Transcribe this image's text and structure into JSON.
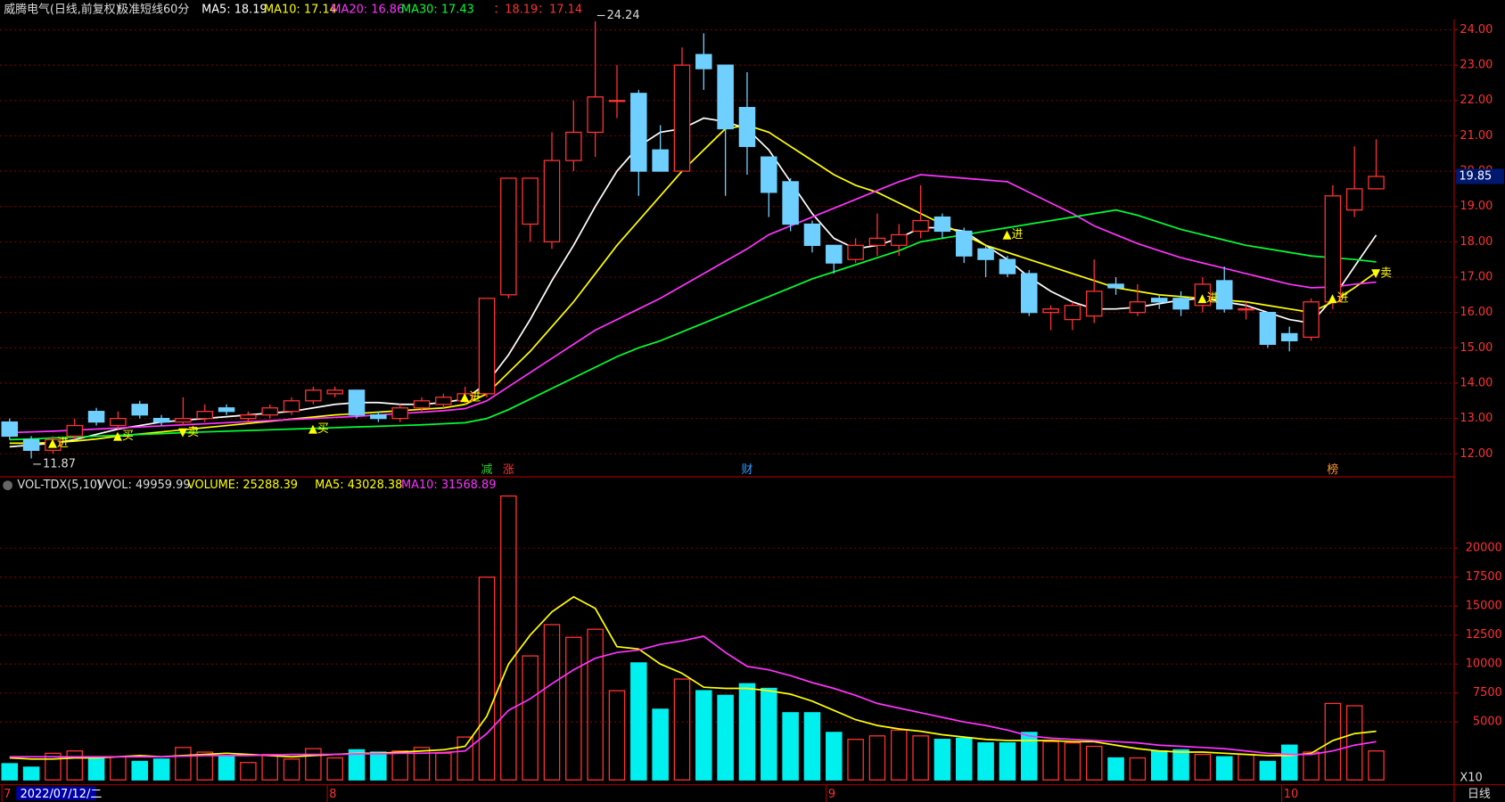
{
  "title": "威腾电气(日线,前复权)",
  "indicator": "极准短线60分",
  "signal_text": "：18.19：17.14",
  "footer": {
    "date": "2022/07/12/二",
    "scale": "X10",
    "period": "日线"
  },
  "chart_data": [
    {
      "type": "candlestick",
      "up_color": "#ff3232",
      "down_color": "#6fd0ff",
      "grid": true,
      "ylim": [
        11.35,
        24.3
      ],
      "yticks": [
        {
          "value": 12,
          "label": "12.00"
        },
        {
          "value": 13,
          "label": "13.00"
        },
        {
          "value": 14,
          "label": "14.00"
        },
        {
          "value": 15,
          "label": "15.00"
        },
        {
          "value": 16,
          "label": "16.00"
        },
        {
          "value": 17,
          "label": "17.00"
        },
        {
          "value": 18,
          "label": "18.00"
        },
        {
          "value": 19,
          "label": "19.00"
        },
        {
          "value": 20,
          "label": "20.00"
        },
        {
          "value": 21,
          "label": "21.00"
        },
        {
          "value": 22,
          "label": "22.00"
        },
        {
          "value": 23,
          "label": "23.00"
        },
        {
          "value": 24,
          "label": "24.00"
        }
      ],
      "open": [
        12.9,
        12.4,
        12.1,
        12.5,
        13.2,
        12.8,
        13.4,
        13.0,
        12.9,
        13.0,
        13.3,
        13.0,
        13.1,
        13.2,
        13.5,
        13.7,
        13.8,
        13.1,
        13.0,
        13.3,
        13.4,
        13.5,
        13.7,
        16.5,
        18.5,
        18.0,
        20.3,
        21.1,
        22.0,
        22.2,
        20.6,
        20.0,
        23.3,
        23.0,
        21.8,
        20.4,
        19.7,
        18.5,
        17.9,
        17.5,
        17.9,
        17.9,
        18.3,
        18.7,
        18.3,
        17.8,
        17.5,
        17.1,
        16.0,
        15.8,
        15.9,
        16.8,
        16.0,
        16.4,
        16.4,
        16.2,
        16.9,
        16.1,
        16.0,
        15.4,
        15.3,
        16.3,
        18.9,
        19.5
      ],
      "high": [
        13.0,
        12.5,
        12.5,
        13.0,
        13.3,
        13.2,
        13.5,
        13.1,
        13.6,
        13.4,
        13.4,
        13.2,
        13.4,
        13.6,
        13.9,
        13.9,
        13.8,
        13.2,
        13.4,
        13.6,
        13.7,
        13.9,
        16.4,
        19.8,
        19.8,
        21.1,
        22.0,
        24.24,
        23.0,
        22.3,
        21.3,
        23.5,
        23.9,
        23.0,
        22.8,
        20.4,
        19.8,
        18.6,
        17.9,
        18.1,
        18.8,
        18.5,
        19.6,
        18.8,
        18.4,
        17.9,
        17.6,
        17.2,
        16.2,
        16.3,
        17.5,
        17.0,
        16.8,
        16.5,
        16.6,
        17.0,
        17.3,
        16.3,
        16.0,
        15.6,
        16.4,
        19.6,
        20.7,
        20.9
      ],
      "low": [
        12.4,
        11.87,
        12.0,
        12.4,
        12.8,
        12.7,
        13.0,
        12.8,
        12.8,
        12.9,
        13.1,
        12.9,
        13.0,
        13.1,
        13.4,
        13.6,
        13.0,
        12.9,
        12.9,
        13.2,
        13.3,
        13.4,
        13.6,
        16.4,
        18.0,
        17.8,
        20.0,
        20.4,
        21.5,
        19.3,
        20.0,
        20.0,
        22.3,
        19.3,
        19.9,
        18.7,
        18.3,
        17.7,
        17.1,
        17.4,
        17.6,
        17.6,
        18.1,
        18.1,
        17.4,
        17.0,
        17.0,
        15.9,
        15.5,
        15.5,
        15.7,
        16.5,
        15.9,
        16.1,
        15.9,
        16.0,
        16.0,
        15.8,
        15.0,
        14.9,
        15.2,
        16.1,
        18.7,
        19.5
      ],
      "close": [
        12.5,
        12.1,
        12.4,
        12.8,
        12.9,
        13.0,
        13.1,
        12.9,
        13.0,
        13.2,
        13.2,
        13.1,
        13.3,
        13.5,
        13.8,
        13.8,
        13.1,
        13.0,
        13.3,
        13.5,
        13.6,
        13.7,
        16.4,
        19.8,
        19.8,
        20.3,
        21.1,
        22.1,
        22.0,
        20.0,
        20.0,
        23.0,
        22.9,
        21.2,
        20.7,
        19.4,
        18.5,
        17.9,
        17.4,
        17.9,
        18.1,
        18.2,
        18.6,
        18.3,
        17.6,
        17.5,
        17.1,
        16.0,
        16.1,
        16.2,
        16.6,
        16.7,
        16.3,
        16.3,
        16.1,
        16.8,
        16.1,
        16.1,
        15.1,
        15.2,
        16.3,
        19.3,
        19.5,
        19.85
      ],
      "series": [
        {
          "legend": "MA5: 18.19",
          "color": "#ffffff",
          "values": [
            12.2,
            12.25,
            12.3,
            12.4,
            12.55,
            12.7,
            12.8,
            12.9,
            12.95,
            13.0,
            13.05,
            13.1,
            13.15,
            13.2,
            13.3,
            13.4,
            13.45,
            13.45,
            13.4,
            13.4,
            13.45,
            13.55,
            14.0,
            14.8,
            15.8,
            16.9,
            17.9,
            19.0,
            20.0,
            20.7,
            21.1,
            21.2,
            21.5,
            21.4,
            21.2,
            20.6,
            19.7,
            18.8,
            18.1,
            17.8,
            17.9,
            18.1,
            18.4,
            18.4,
            18.3,
            17.9,
            17.5,
            17.0,
            16.6,
            16.3,
            16.1,
            16.1,
            16.15,
            16.25,
            16.35,
            16.4,
            16.3,
            16.2,
            16.0,
            15.8,
            15.7,
            16.4,
            17.3,
            18.19
          ]
        },
        {
          "legend": "MA10: 17.14",
          "color": "#ffff00",
          "values": [
            12.3,
            12.3,
            12.32,
            12.36,
            12.42,
            12.5,
            12.56,
            12.62,
            12.68,
            12.74,
            12.8,
            12.86,
            12.92,
            12.98,
            13.04,
            13.1,
            13.14,
            13.18,
            13.22,
            13.26,
            13.3,
            13.4,
            13.7,
            14.3,
            14.9,
            15.6,
            16.3,
            17.1,
            17.9,
            18.6,
            19.3,
            20.0,
            20.6,
            21.2,
            21.3,
            21.1,
            20.7,
            20.3,
            19.9,
            19.6,
            19.4,
            19.1,
            18.8,
            18.5,
            18.2,
            17.9,
            17.7,
            17.5,
            17.3,
            17.1,
            16.9,
            16.7,
            16.6,
            16.5,
            16.45,
            16.4,
            16.35,
            16.3,
            16.2,
            16.1,
            16.0,
            16.3,
            16.7,
            17.14
          ]
        },
        {
          "legend": "MA20: 16.86",
          "color": "#ff33ff",
          "values": [
            12.6,
            12.62,
            12.64,
            12.67,
            12.7,
            12.73,
            12.76,
            12.79,
            12.82,
            12.85,
            12.88,
            12.91,
            12.94,
            12.97,
            13.0,
            13.03,
            13.06,
            13.1,
            13.14,
            13.18,
            13.22,
            13.28,
            13.5,
            13.9,
            14.3,
            14.7,
            15.1,
            15.5,
            15.8,
            16.1,
            16.4,
            16.75,
            17.1,
            17.45,
            17.8,
            18.2,
            18.45,
            18.7,
            18.95,
            19.2,
            19.45,
            19.7,
            19.9,
            19.85,
            19.8,
            19.75,
            19.7,
            19.4,
            19.1,
            18.8,
            18.45,
            18.2,
            17.95,
            17.75,
            17.55,
            17.4,
            17.25,
            17.1,
            16.95,
            16.8,
            16.7,
            16.72,
            16.8,
            16.86
          ]
        },
        {
          "legend": "MA30: 17.43",
          "color": "#00ff33",
          "values": [
            12.4,
            12.42,
            12.45,
            12.47,
            12.5,
            12.52,
            12.55,
            12.57,
            12.6,
            12.62,
            12.64,
            12.66,
            12.68,
            12.7,
            12.72,
            12.74,
            12.76,
            12.78,
            12.8,
            12.82,
            12.85,
            12.88,
            13.0,
            13.25,
            13.55,
            13.85,
            14.15,
            14.45,
            14.75,
            15.0,
            15.2,
            15.45,
            15.7,
            15.95,
            16.2,
            16.45,
            16.7,
            16.95,
            17.15,
            17.35,
            17.55,
            17.75,
            18.0,
            18.1,
            18.2,
            18.3,
            18.4,
            18.5,
            18.6,
            18.7,
            18.8,
            18.9,
            18.75,
            18.55,
            18.35,
            18.2,
            18.05,
            17.9,
            17.8,
            17.7,
            17.6,
            17.55,
            17.5,
            17.43
          ]
        }
      ],
      "annotations": [
        {
          "text": "▲进",
          "index": 2,
          "price": 12.3
        },
        {
          "text": "▲买",
          "index": 5,
          "price": 12.5
        },
        {
          "text": "▼卖",
          "index": 8,
          "price": 12.6
        },
        {
          "text": "▲买",
          "index": 14,
          "price": 12.7
        },
        {
          "text": "▲进",
          "index": 21,
          "price": 13.6
        },
        {
          "text": "▲进",
          "index": 46,
          "price": 18.2
        },
        {
          "text": "▲进",
          "index": 55,
          "price": 16.4
        },
        {
          "text": "▲进",
          "index": 61,
          "price": 16.4
        },
        {
          "text": "▼卖",
          "index": 63,
          "price": 17.1
        }
      ],
      "events": [
        {
          "text": "减",
          "index": 22,
          "color": "#33cc33"
        },
        {
          "text": "涨",
          "index": 23,
          "color": "#ff3232"
        },
        {
          "text": "财",
          "index": 34,
          "color": "#3399ff"
        },
        {
          "text": "榜",
          "index": 61,
          "color": "#ff9933"
        }
      ],
      "month_ticks": [
        {
          "index": 0,
          "label": "7"
        },
        {
          "index": 15,
          "label": "8"
        },
        {
          "index": 38,
          "label": "9"
        },
        {
          "index": 59,
          "label": "10"
        }
      ]
    },
    {
      "type": "volume",
      "name": "VOL-TDX(5,10)",
      "vvol": "VVOL: 49959.99",
      "volume_legend": "VOLUME: 25288.39",
      "up_color": "#ff3232",
      "down_color": "#00f0f0",
      "grid": true,
      "ylim": [
        0,
        25000
      ],
      "yticks": [
        5000,
        7500,
        10000,
        12500,
        15000,
        17500,
        20000
      ],
      "values": [
        1400,
        1100,
        2300,
        2500,
        2000,
        2000,
        1600,
        1800,
        2800,
        2400,
        2000,
        1500,
        2200,
        1800,
        2700,
        1900,
        2600,
        2400,
        2500,
        2800,
        2300,
        3700,
        17500,
        24500,
        10700,
        13400,
        12300,
        13000,
        7700,
        10100,
        6100,
        8700,
        7700,
        7300,
        8300,
        7900,
        5800,
        5800,
        4100,
        3500,
        3800,
        4300,
        3800,
        3500,
        3600,
        3200,
        3200,
        4100,
        3300,
        3200,
        2900,
        1900,
        1900,
        2500,
        2600,
        2200,
        2000,
        2200,
        1600,
        3000,
        2400,
        6600,
        6400,
        2500
      ],
      "series": [
        {
          "legend": "MA5: 43028.38",
          "color": "#ffff00",
          "values": [
            1900,
            1800,
            1800,
            1900,
            1900,
            2000,
            2100,
            2000,
            2100,
            2200,
            2300,
            2200,
            2100,
            2000,
            2100,
            2200,
            2300,
            2300,
            2400,
            2500,
            2600,
            2900,
            5500,
            10000,
            12500,
            14500,
            15800,
            14800,
            11500,
            11300,
            10000,
            9200,
            8000,
            7900,
            7900,
            7700,
            7400,
            6800,
            6000,
            5200,
            4700,
            4400,
            4200,
            3900,
            3700,
            3500,
            3400,
            3400,
            3400,
            3300,
            3300,
            3000,
            2700,
            2500,
            2400,
            2400,
            2300,
            2200,
            2100,
            2100,
            2300,
            3400,
            4000,
            4200
          ]
        },
        {
          "legend": "MA10: 31568.89",
          "color": "#ff33ff",
          "values": [
            2000,
            2000,
            2000,
            2000,
            2000,
            2000,
            2000,
            2000,
            2050,
            2100,
            2100,
            2100,
            2150,
            2200,
            2200,
            2200,
            2250,
            2250,
            2300,
            2300,
            2350,
            2500,
            4000,
            6000,
            7000,
            8300,
            9500,
            10500,
            11000,
            11200,
            11700,
            12000,
            12400,
            11000,
            9800,
            9500,
            9000,
            8400,
            7900,
            7300,
            6600,
            6200,
            5800,
            5400,
            5000,
            4700,
            4300,
            3800,
            3600,
            3500,
            3400,
            3300,
            3200,
            3000,
            2900,
            2800,
            2700,
            2500,
            2300,
            2200,
            2200,
            2500,
            3000,
            3300
          ]
        }
      ]
    }
  ]
}
